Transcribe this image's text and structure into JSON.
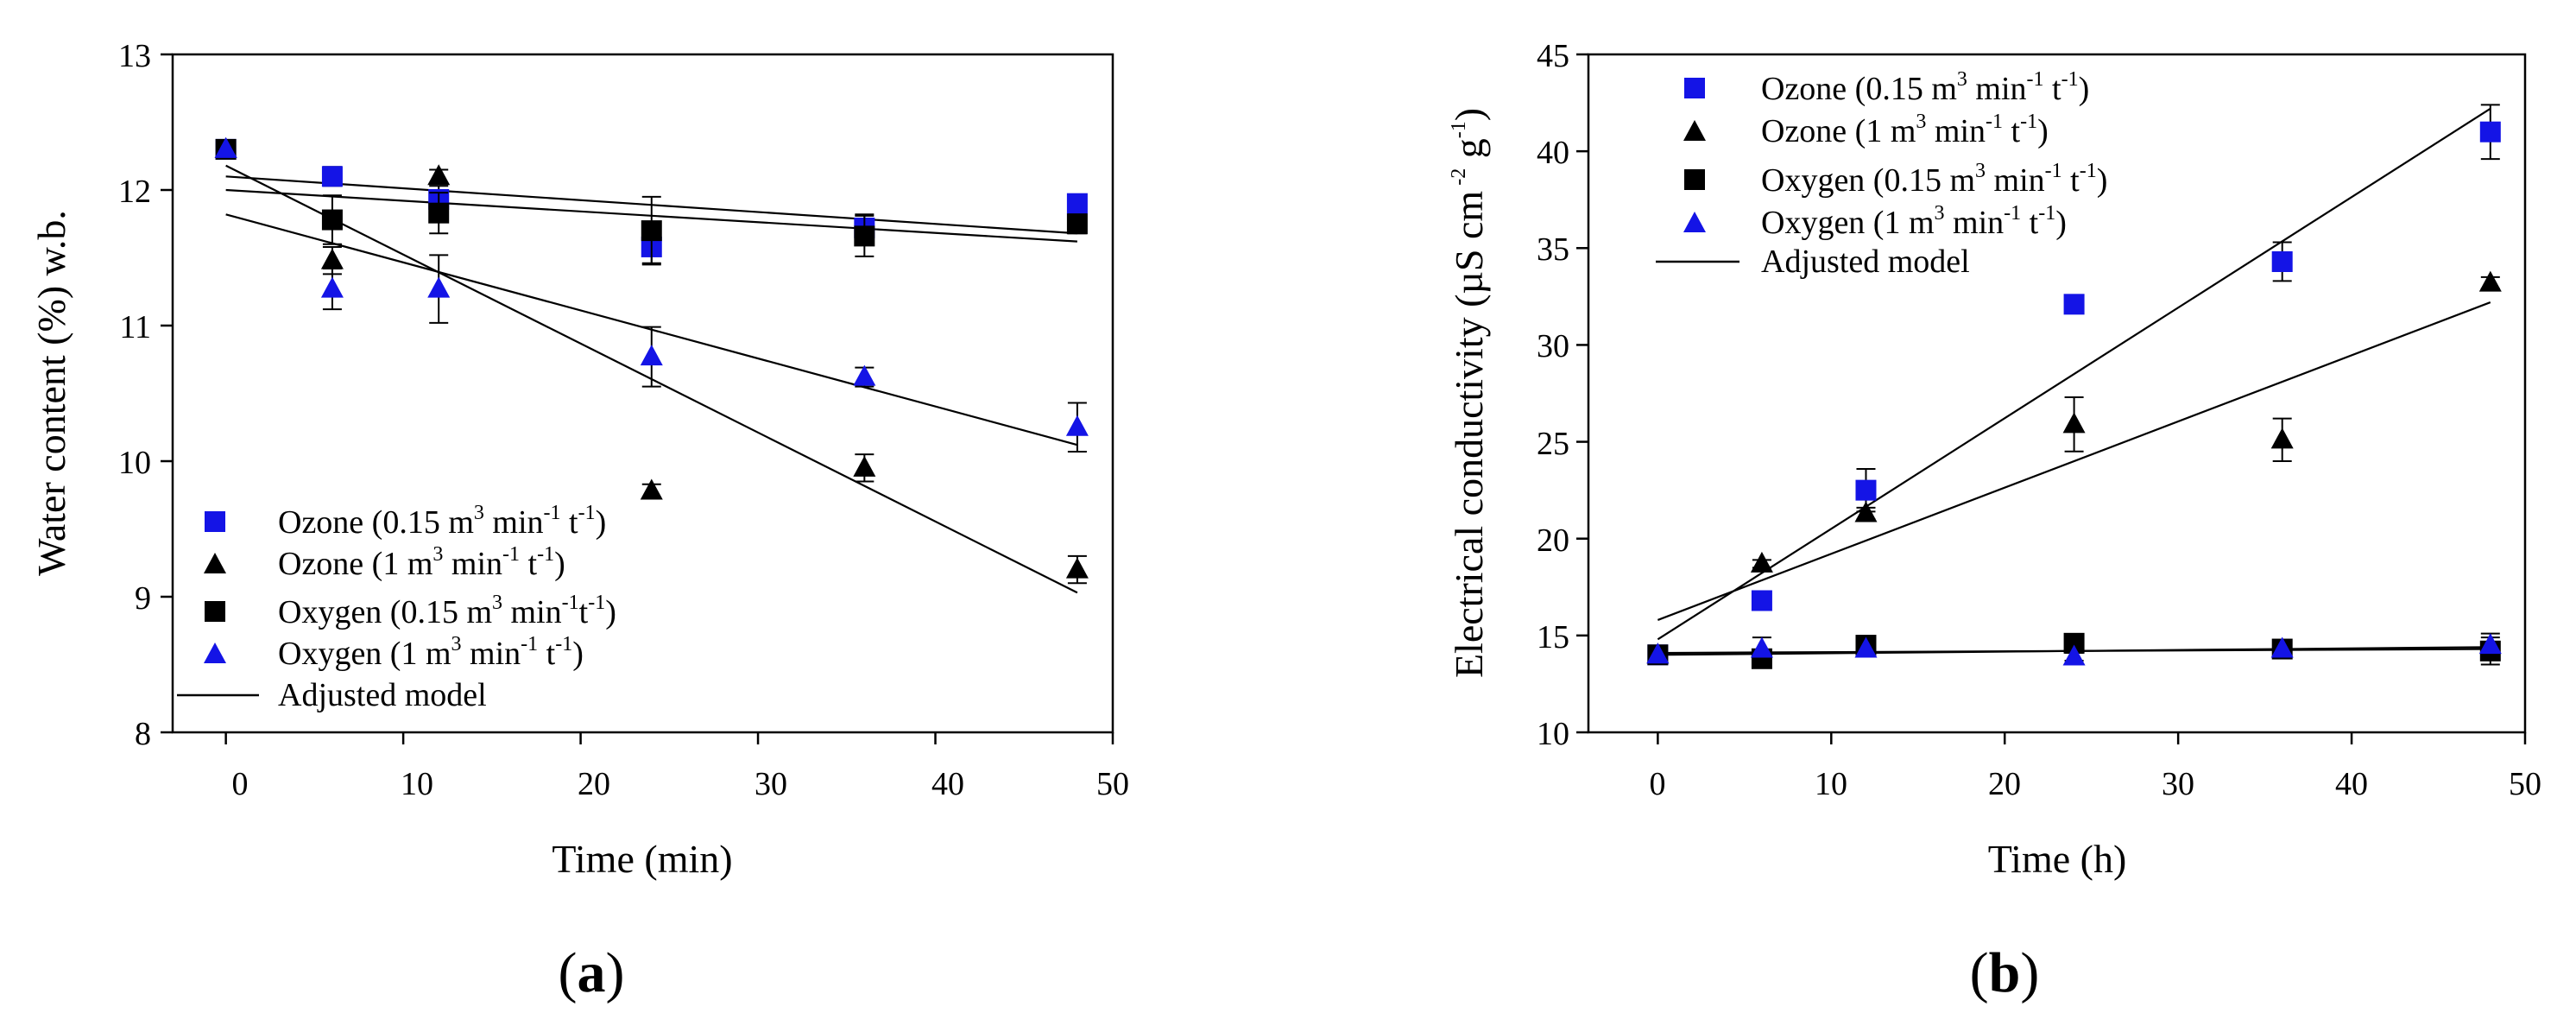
{
  "colors": {
    "blue": "#1414e6",
    "black": "#000000"
  },
  "chart_data": [
    {
      "type": "scatter",
      "panel": "a",
      "panel_label": {
        "open": "(",
        "letter": "a",
        "close": ")"
      },
      "xlabel": "Time (min)",
      "ylabel": "Water content  (%) w.b.",
      "xlim": [
        -3,
        50
      ],
      "ylim": [
        8,
        13
      ],
      "xticks": [
        "0",
        "10",
        "20",
        "30",
        "40",
        "50"
      ],
      "yticks": [
        "8",
        "9",
        "10",
        "11",
        "12",
        "13"
      ],
      "legend_position": "bottom-left",
      "legend_model_label": "Adjusted model",
      "series": [
        {
          "name": "Ozone (0.15 m3 min-1 t-1)",
          "legend": {
            "pre": "Ozone (0.15 m",
            "a": "3",
            "b": " min",
            "c": "-1",
            "d": " t",
            "e": "-1",
            "post": ")"
          },
          "marker": "square",
          "color": "#1414e6",
          "x": [
            0,
            6,
            12,
            24,
            36,
            48
          ],
          "y": [
            12.3,
            12.1,
            11.93,
            11.58,
            11.72,
            11.9
          ],
          "err": [
            0.05,
            0.07,
            0.1,
            0.12,
            0.1,
            0.05
          ]
        },
        {
          "name": "Ozone (1 m3 min-1 t-1)",
          "legend": {
            "pre": "Ozone (1 m",
            "a": "3",
            "b": " min",
            "c": "-1",
            "d": " t",
            "e": "-1",
            "post": ")"
          },
          "marker": "triangle",
          "color": "#000000",
          "x": [
            0,
            6,
            12,
            24,
            36,
            48
          ],
          "y": [
            12.3,
            11.48,
            12.1,
            9.78,
            9.95,
            9.2
          ],
          "err": [
            0.05,
            0.1,
            0.05,
            0.05,
            0.1,
            0.1
          ]
        },
        {
          "name": "Oxygen (0.15 m3 min-1 t-1)",
          "legend": {
            "pre": "Oxygen (0.15 m",
            "a": "3",
            "b": " min",
            "c": "-1",
            "d": "t",
            "e": "-1",
            "post": ")"
          },
          "marker": "square",
          "color": "#000000",
          "x": [
            0,
            6,
            12,
            24,
            36,
            48
          ],
          "y": [
            12.3,
            11.78,
            11.83,
            11.7,
            11.66,
            11.75
          ],
          "err": [
            0.05,
            0.18,
            0.15,
            0.25,
            0.15,
            0.07
          ]
        },
        {
          "name": "Oxygen (1 m3 min-1 t-1)",
          "legend": {
            "pre": "Oxygen (1 m",
            "a": "3",
            "b": " min",
            "c": "-1",
            "d": " t",
            "e": "-1",
            "post": ")"
          },
          "marker": "triangle",
          "color": "#1414e6",
          "x": [
            0,
            6,
            12,
            24,
            36,
            48
          ],
          "y": [
            12.3,
            11.27,
            11.27,
            10.77,
            10.62,
            10.25
          ],
          "err": [
            0.05,
            0.15,
            0.25,
            0.22,
            0.07,
            0.18
          ]
        }
      ],
      "model_lines": [
        {
          "x": [
            0,
            48
          ],
          "y": [
            12.1,
            11.68
          ]
        },
        {
          "x": [
            0,
            48
          ],
          "y": [
            12.0,
            11.62
          ]
        },
        {
          "x": [
            0,
            48
          ],
          "y": [
            11.82,
            10.12
          ]
        },
        {
          "x": [
            0,
            48
          ],
          "y": [
            12.18,
            9.03
          ]
        }
      ]
    },
    {
      "type": "scatter",
      "panel": "b",
      "panel_label": {
        "open": "(",
        "letter": "b",
        "close": ")"
      },
      "xlabel": "Time (h)",
      "ylabel": {
        "pre": "Electrical conductivity (µS cm",
        "a": " -2",
        "b": " g",
        "c": "-1",
        "post": ")"
      },
      "xlim": [
        -4,
        50
      ],
      "ylim": [
        10,
        45
      ],
      "xticks": [
        "0",
        "10",
        "20",
        "30",
        "40",
        "50"
      ],
      "yticks": [
        "10",
        "15",
        "20",
        "25",
        "30",
        "35",
        "40",
        "45"
      ],
      "legend_position": "top-left",
      "legend_model_label": "Adjusted model",
      "series": [
        {
          "name": "Ozone (0.15 m3 min-1 t-1)",
          "legend": {
            "pre": "Ozone (0.15 m",
            "a": "3",
            "b": " min",
            "c": "-1",
            "d": " t",
            "e": "-1",
            "post": ")"
          },
          "marker": "square",
          "color": "#1414e6",
          "x": [
            0,
            6,
            12,
            24,
            36,
            48
          ],
          "y": [
            14.0,
            16.8,
            22.5,
            32.1,
            34.3,
            41.0
          ],
          "err": [
            0.3,
            0.3,
            1.1,
            0.2,
            1.0,
            1.4
          ]
        },
        {
          "name": "Ozone (1 m3 min-1 t-1)",
          "legend": {
            "pre": "Ozone (1 m",
            "a": "3",
            "b": " min",
            "c": "-1",
            "d": " t",
            "e": "-1",
            "post": ")"
          },
          "marker": "triangle",
          "color": "#000000",
          "x": [
            0,
            6,
            12,
            24,
            36,
            48
          ],
          "y": [
            14.0,
            18.7,
            21.3,
            25.9,
            25.1,
            33.2
          ],
          "err": [
            0.3,
            0.2,
            0.3,
            1.4,
            1.1,
            0.3
          ]
        },
        {
          "name": "Oxygen (0.15 m3 min-1 t-1)",
          "legend": {
            "pre": "Oxygen (0.15 m",
            "a": "3",
            "b": " min",
            "c": "-1",
            "d": " t",
            "e": "-1",
            "post": ")"
          },
          "marker": "square",
          "color": "#000000",
          "x": [
            0,
            6,
            12,
            24,
            36,
            48
          ],
          "y": [
            14.0,
            13.8,
            14.5,
            14.6,
            14.3,
            14.2
          ],
          "err": [
            0.3,
            0.2,
            0.2,
            0.2,
            0.2,
            0.7
          ]
        },
        {
          "name": "Oxygen (1 m3 min-1 t-1)",
          "legend": {
            "pre": "Oxygen (1 m",
            "a": "3",
            "b": " min",
            "c": "-1",
            "d": " t",
            "e": "-1",
            "post": ")"
          },
          "marker": "triangle",
          "color": "#1414e6",
          "x": [
            0,
            6,
            12,
            24,
            36,
            48
          ],
          "y": [
            14.0,
            14.3,
            14.3,
            13.9,
            14.3,
            14.5
          ],
          "err": [
            0.2,
            0.6,
            0.2,
            0.2,
            0.2,
            0.6
          ]
        }
      ],
      "model_lines": [
        {
          "x": [
            0,
            48
          ],
          "y": [
            14.8,
            42.2
          ]
        },
        {
          "x": [
            0,
            48
          ],
          "y": [
            15.8,
            32.2
          ]
        },
        {
          "x": [
            0,
            48
          ],
          "y": [
            14.0,
            14.4
          ]
        },
        {
          "x": [
            0,
            48
          ],
          "y": [
            14.1,
            14.3
          ]
        }
      ]
    }
  ]
}
